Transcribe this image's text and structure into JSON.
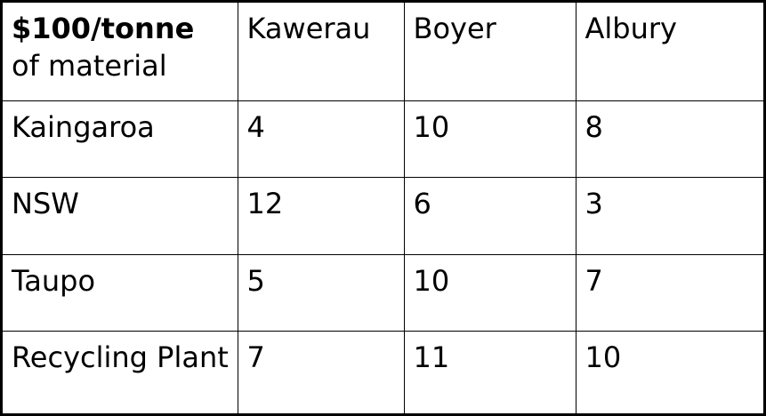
{
  "table": {
    "corner": {
      "line1": "$100/tonne",
      "line2": "of material"
    },
    "columns": [
      "Kawerau",
      "Boyer",
      "Albury"
    ],
    "rows": [
      {
        "label": "Kaingaroa",
        "values": [
          "4",
          "10",
          "8"
        ]
      },
      {
        "label": "NSW",
        "values": [
          "12",
          "6",
          "3"
        ]
      },
      {
        "label": "Taupo",
        "values": [
          "5",
          "10",
          "7"
        ]
      },
      {
        "label": "Recycling Plant",
        "values": [
          "7",
          "11",
          "10"
        ]
      }
    ]
  }
}
